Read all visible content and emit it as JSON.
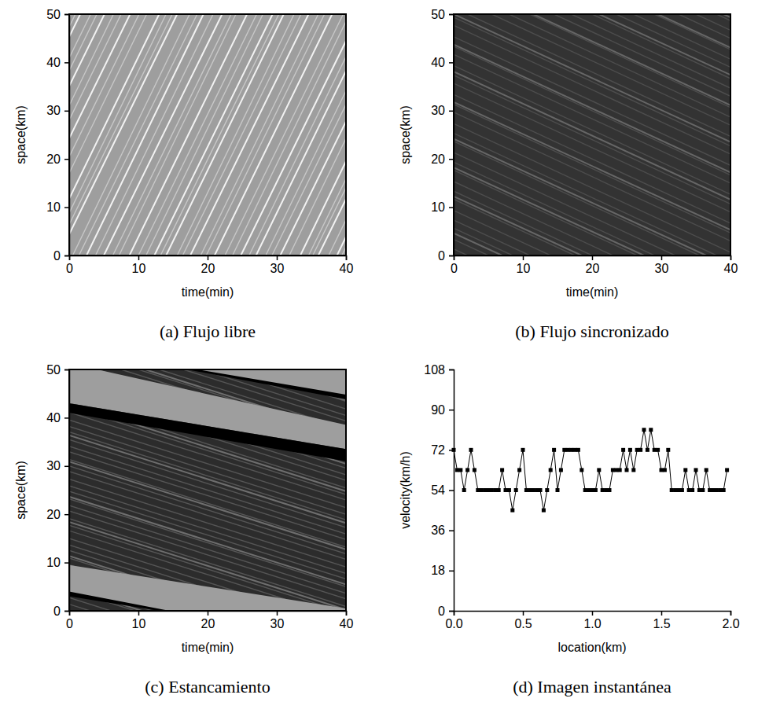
{
  "chart_data": [
    {
      "type": "spacetime",
      "title": "(a) Flujo libre",
      "x_label": "time(min)",
      "y_label": "space(km)",
      "xlim": [
        0,
        40
      ],
      "ylim": [
        0,
        50
      ],
      "xticks": [
        0,
        10,
        20,
        30,
        40
      ],
      "yticks": [
        0,
        10,
        20,
        30,
        40,
        50
      ],
      "color": "#9e9e9e",
      "series": [
        {
          "type": "stripes",
          "color": "#c8c8c8",
          "start": [
            -17,
            -16.2,
            -14,
            -13.1,
            -10.5,
            -9.6,
            -7,
            -5.8,
            -3,
            -2.2,
            0.5,
            1.4,
            3.8,
            6.3,
            7.2,
            10,
            11.1,
            13.2,
            15.6,
            16.4,
            19,
            19.8,
            22.5,
            23.6,
            26,
            28.4,
            29.3,
            31.8,
            34.6,
            35.2,
            37.5,
            39.4
          ],
          "end": [
            0.2,
            0.9,
            3.1,
            4.0,
            6.4,
            7.5,
            10.1,
            11.2,
            14.0,
            14.9,
            17.4,
            18.5,
            20.8,
            23.4,
            24.1,
            27.1,
            28.0,
            30.3,
            32.5,
            33.5,
            36.0,
            36.9,
            39.6,
            40.5,
            43.0,
            45.4,
            46.4,
            48.7,
            51.6,
            52.3,
            54.4,
            56.5
          ]
        },
        {
          "type": "stripes",
          "color": "#f2f2f2",
          "start": [
            -15.5,
            -12,
            -8.3,
            -4,
            -1.5,
            2.5,
            5,
            8.7,
            12.3,
            14,
            17.5,
            21,
            24.8,
            27,
            30.5,
            33.4,
            36,
            38.7
          ],
          "end": [
            1.6,
            5.1,
            8.8,
            13.0,
            15.6,
            19.4,
            22.1,
            25.7,
            29.4,
            31.0,
            34.6,
            38.0,
            41.9,
            44.0,
            47.6,
            50.3,
            53.1,
            55.6
          ]
        }
      ]
    },
    {
      "type": "spacetime",
      "title": "(b) Flujo sincronizado",
      "x_label": "time(min)",
      "y_label": "space(km)",
      "xlim": [
        0,
        40
      ],
      "ylim": [
        0,
        50
      ],
      "xticks": [
        0,
        10,
        20,
        30,
        40
      ],
      "yticks": [
        0,
        10,
        20,
        30,
        40,
        50
      ],
      "color": "#333333",
      "series": [
        {
          "type": "stripes",
          "color": "#4d4d4d",
          "start": [
            2,
            5,
            8.5,
            11,
            14,
            17.5,
            20,
            23,
            26.5,
            29,
            32,
            35.5,
            38,
            41,
            44.5,
            47,
            50,
            53.5,
            56,
            59,
            62.5,
            65,
            68,
            71.5,
            74,
            77,
            80.5,
            83,
            86,
            89.5,
            92,
            95,
            98.5,
            101,
            104,
            107.5,
            110,
            113
          ],
          "end": [
            -73,
            -70,
            -66.5,
            -64,
            -61,
            -57.5,
            -55,
            -52,
            -48.5,
            -46,
            -43,
            -39.5,
            -37,
            -34,
            -30.5,
            -28,
            -25,
            -21.5,
            -19,
            -16,
            -12.5,
            -10,
            -7,
            -3.5,
            -1,
            2,
            5.5,
            8,
            11,
            14.5,
            17,
            20,
            23.5,
            26,
            29,
            32.5,
            35,
            38
          ]
        },
        {
          "type": "stripes",
          "color": "#666666",
          "start": [
            7,
            18.5,
            27.5,
            36.5,
            48,
            57.5,
            66,
            75.5,
            87,
            96.5,
            105,
            114.5
          ],
          "end": [
            -69,
            -57,
            -48,
            -39,
            -27.5,
            -18,
            -9.5,
            0,
            11.5,
            21,
            29.5,
            39
          ]
        }
      ]
    },
    {
      "type": "spacetime",
      "title": "(c) Estancamiento",
      "x_label": "time(min)",
      "y_label": "space(km)",
      "xlim": [
        0,
        40
      ],
      "ylim": [
        0,
        50
      ],
      "xticks": [
        0,
        10,
        20,
        30,
        40
      ],
      "yticks": [
        0,
        10,
        20,
        30,
        40,
        50
      ],
      "color": "#2c2c2c",
      "series": [
        {
          "type": "stripes",
          "color": "#555555",
          "start": [
            3,
            6,
            9.5,
            12,
            15,
            18.5,
            21,
            24,
            27.5,
            30,
            33,
            36.5,
            39,
            42,
            45.5,
            48,
            51,
            54.5,
            57,
            60,
            63.5,
            66,
            69,
            72.5,
            75,
            78,
            81.5,
            84,
            87,
            90.5,
            93,
            96,
            99.5,
            102,
            105,
            108.5,
            111,
            114,
            117.5,
            120,
            123,
            126.5,
            129,
            132,
            135.5,
            138,
            141,
            144.5,
            147
          ],
          "end": [
            -107,
            -104,
            -100.5,
            -98,
            -95,
            -91.5,
            -89,
            -86,
            -82.5,
            -80,
            -77,
            -73.5,
            -71,
            -68,
            -64.5,
            -62,
            -59,
            -55.5,
            -53,
            -50,
            -46.5,
            -44,
            -41,
            -37.5,
            -35,
            -32,
            -28.5,
            -26,
            -23,
            -19.5,
            -17,
            -14,
            -10.5,
            -8,
            -5,
            -1.5,
            1,
            4,
            7.5,
            10,
            13,
            16.5,
            19,
            22,
            25.5,
            28,
            31,
            34.5,
            37
          ]
        },
        {
          "type": "stripes",
          "color": "#6e6e6e",
          "start": [
            10.5,
            25,
            40.5,
            52,
            68,
            80,
            94.5,
            107,
            121,
            136
          ],
          "end": [
            -99.5,
            -85,
            -69.5,
            -58,
            -42,
            -30,
            -15.5,
            -3,
            11,
            26
          ]
        },
        {
          "type": "area",
          "color": "#9e9e9e",
          "x": [
            0,
            0,
            4,
            40,
            40
          ],
          "y": [
            43,
            50,
            50,
            38.5,
            33.5
          ]
        },
        {
          "type": "area",
          "color": "#9e9e9e",
          "x": [
            18,
            40,
            40
          ],
          "y": [
            50,
            50,
            44.5
          ]
        },
        {
          "type": "area",
          "color": "#000000",
          "x": [
            17,
            18.5,
            40,
            40
          ],
          "y": [
            50,
            50,
            44.8,
            43.8
          ]
        },
        {
          "type": "area",
          "color": "#000000",
          "x": [
            0,
            0,
            40,
            40
          ],
          "y": [
            41,
            43,
            33.5,
            31
          ]
        },
        {
          "type": "area",
          "color": "#9e9e9e",
          "x": [
            0,
            0,
            40,
            40,
            14
          ],
          "y": [
            3.5,
            9.5,
            0.5,
            0,
            0
          ]
        },
        {
          "type": "area",
          "color": "#000000",
          "x": [
            0,
            0,
            14.5,
            13
          ],
          "y": [
            3,
            4,
            0,
            0
          ]
        }
      ]
    },
    {
      "type": "line",
      "title": "(d) Imagen instantánea",
      "x_label": "location(km)",
      "y_label": "velocity(km/h)",
      "xlim": [
        0,
        2
      ],
      "ylim": [
        0,
        108
      ],
      "xticks": [
        {
          "value": 0,
          "label": "0.0"
        },
        {
          "value": 0.5,
          "label": "0.5"
        },
        {
          "value": 1,
          "label": "1.0"
        },
        {
          "value": 1.5,
          "label": "1.5"
        },
        {
          "value": 2,
          "label": "2.0"
        }
      ],
      "yticks": [
        0,
        18,
        36,
        54,
        72,
        90,
        108
      ],
      "color": "#000000",
      "marker": "square",
      "x": [
        0,
        0.025,
        0.05,
        0.075,
        0.1,
        0.125,
        0.15,
        0.175,
        0.2,
        0.225,
        0.25,
        0.275,
        0.3,
        0.325,
        0.35,
        0.375,
        0.4,
        0.425,
        0.45,
        0.475,
        0.5,
        0.525,
        0.55,
        0.575,
        0.6,
        0.625,
        0.65,
        0.675,
        0.7,
        0.725,
        0.75,
        0.775,
        0.8,
        0.825,
        0.85,
        0.875,
        0.9,
        0.925,
        0.95,
        0.975,
        1.0,
        1.025,
        1.05,
        1.075,
        1.1,
        1.125,
        1.15,
        1.175,
        1.2,
        1.225,
        1.25,
        1.275,
        1.3,
        1.325,
        1.35,
        1.375,
        1.4,
        1.425,
        1.45,
        1.475,
        1.5,
        1.525,
        1.55,
        1.575,
        1.6,
        1.625,
        1.65,
        1.675,
        1.7,
        1.725,
        1.75,
        1.775,
        1.8,
        1.825,
        1.85,
        1.875,
        1.9,
        1.925,
        1.95,
        1.975
      ],
      "values": [
        72,
        63,
        63,
        54,
        63,
        72,
        63,
        54,
        54,
        54,
        54,
        54,
        54,
        54,
        63,
        54,
        54,
        45,
        54,
        63,
        72,
        54,
        54,
        54,
        54,
        54,
        45,
        54,
        63,
        72,
        54,
        63,
        72,
        72,
        72,
        72,
        72,
        63,
        54,
        54,
        54,
        54,
        63,
        54,
        54,
        54,
        63,
        63,
        63,
        72,
        63,
        72,
        63,
        72,
        72,
        81,
        72,
        81,
        72,
        72,
        63,
        63,
        72,
        54,
        54,
        54,
        54,
        63,
        54,
        54,
        63,
        54,
        54,
        63,
        54,
        54,
        54,
        54,
        54,
        63
      ]
    }
  ]
}
